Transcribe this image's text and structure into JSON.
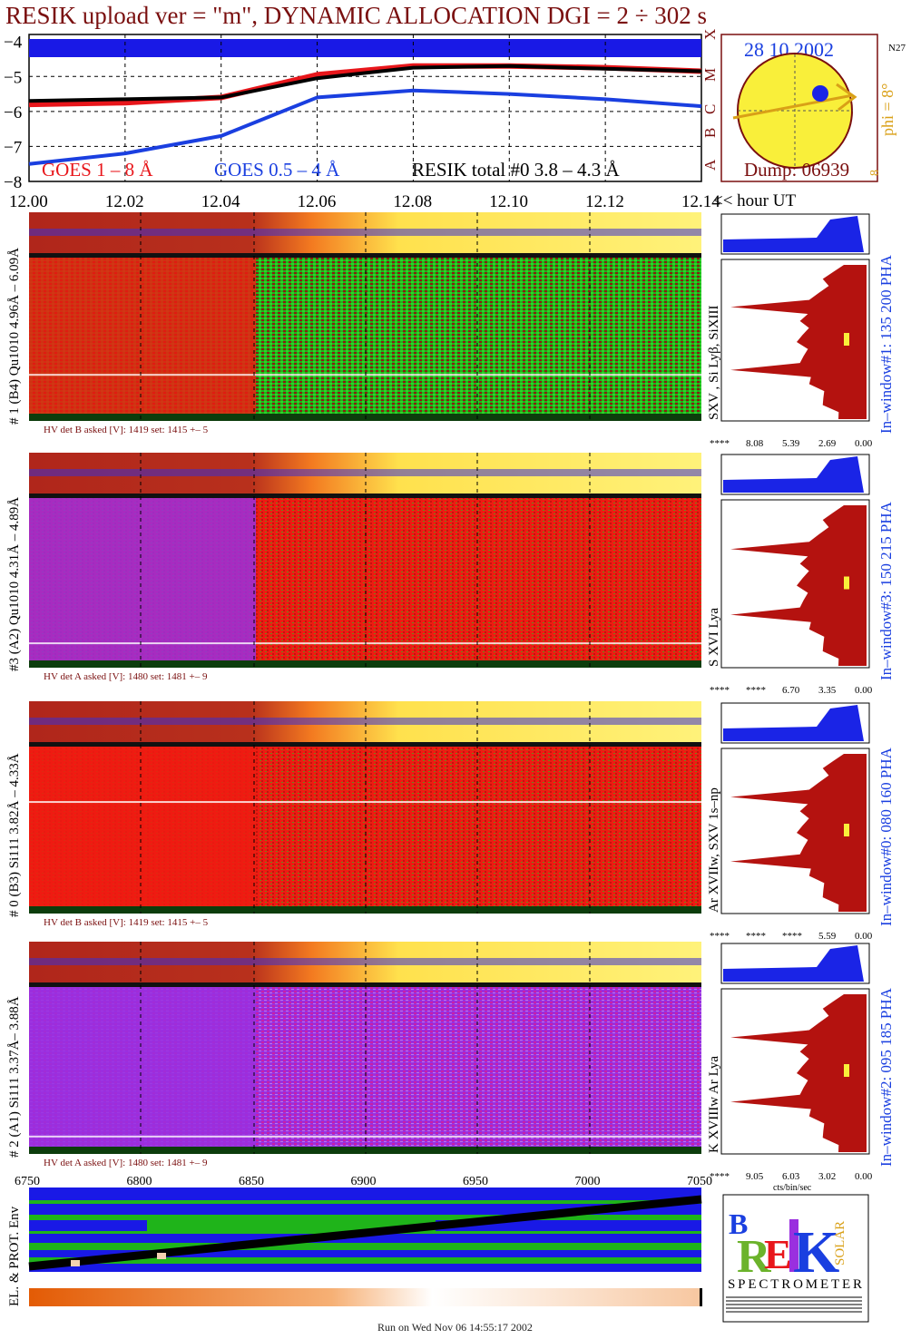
{
  "title": "RESIK upload ver = \"m\", DYNAMIC ALLOCATION  DGI =   2 ÷ 302 s",
  "goes_panel": {
    "yticks": [
      "−4",
      "−5",
      "−6",
      "−7",
      "−8"
    ],
    "legend": {
      "goes18": "GOES 1 – 8 Å",
      "goes054": "GOES 0.5 – 4 Å",
      "resik": "RESIK total #0  3.8 – 4.3 Å"
    },
    "class_letters": [
      "A",
      "B",
      "C",
      "M",
      "X"
    ],
    "colors": {
      "goes18": "#e8161b",
      "goes054": "#1a3fe0",
      "resik": "#000000"
    }
  },
  "time_axis": {
    "ticks": [
      "12.00",
      "12.02",
      "12.04",
      "12.06",
      "12.08",
      "12.10",
      "12.12",
      "12.14"
    ],
    "label": "<< hour UT"
  },
  "sun": {
    "date": "28 10 2002",
    "region": "N27",
    "phi": "phi =  8°",
    "eight": "8",
    "dump": "Dump: 06939"
  },
  "panels": [
    {
      "ylabel": "# 1 (B4) Qu1010 4.96Å – 6.09Å",
      "lines": "SXV , Si Lyβ, SiXIII",
      "window": "In–window#1:  135 200 PHA",
      "hv": "HV det B asked [V]:  1419 set:  1415  +–   5",
      "xticks": [
        "****",
        "8.08",
        "5.39",
        "2.69",
        "0.00"
      ]
    },
    {
      "ylabel": "#3 (A2) Qu1010  4.31Å – 4.89Å",
      "lines": "S XVI Lya",
      "window": "In–window#3:  150 215 PHA",
      "hv": "HV det A asked [V]:  1480 set:  1481  +–   9",
      "xticks": [
        "****",
        "****",
        "6.70",
        "3.35",
        "0.00"
      ]
    },
    {
      "ylabel": "# 0 (B3) Si111  3.82Å – 4.33Å",
      "lines": "Ar XVIIw,  SXV 1s–np",
      "window": "In–window#0:  080 160 PHA",
      "hv": "HV det B asked [V]:  1419 set:  1415  +–   5",
      "xticks": [
        "****",
        "****",
        "****",
        "5.59",
        "0.00"
      ]
    },
    {
      "ylabel": "# 2 (A1) Si111  3.37Å–  3.88Å",
      "lines": "K XVIIIw   Ar Lya",
      "window": "In–window#2:  095 185 PHA",
      "hv": "HV det A asked [V]:  1480 set:  1481  +–   9",
      "xticks": [
        "****",
        "9.05",
        "6.03",
        "3.02",
        "0.00"
      ],
      "xunit": "cts/bin/sec"
    }
  ],
  "bottom_axis": {
    "ticks": [
      "6750",
      "6800",
      "6850",
      "6900",
      "6950",
      "7000",
      "7050"
    ]
  },
  "env_label": "EL. & PROT. Env",
  "logo": {
    "spectrometer": "SPECTROMETER"
  },
  "footer": "Run on Wed Nov 06 14:55:17 2002",
  "chart_data": [
    {
      "type": "line",
      "x": [
        12.0,
        12.02,
        12.04,
        12.06,
        12.08,
        12.1,
        12.12,
        12.14
      ],
      "series": [
        {
          "name": "GOES 1 – 8 Å",
          "values": [
            -5.8,
            -5.75,
            -5.6,
            -4.95,
            -4.7,
            -4.7,
            -4.75,
            -4.85
          ]
        },
        {
          "name": "GOES 0.5 – 4 Å",
          "values": [
            -7.5,
            -7.2,
            -6.7,
            -5.6,
            -5.4,
            -5.5,
            -5.65,
            -5.85
          ]
        },
        {
          "name": "RESIK total #0  3.8 – 4.3 Å",
          "values": [
            -5.7,
            -5.65,
            -5.6,
            -5.05,
            -4.75,
            -4.7,
            -4.78,
            -4.85
          ]
        }
      ],
      "xlim": [
        12.0,
        12.14
      ],
      "ylim": [
        -8,
        -3.8
      ],
      "title": "",
      "xlabel": "<< hour UT",
      "ylabel": ""
    }
  ]
}
